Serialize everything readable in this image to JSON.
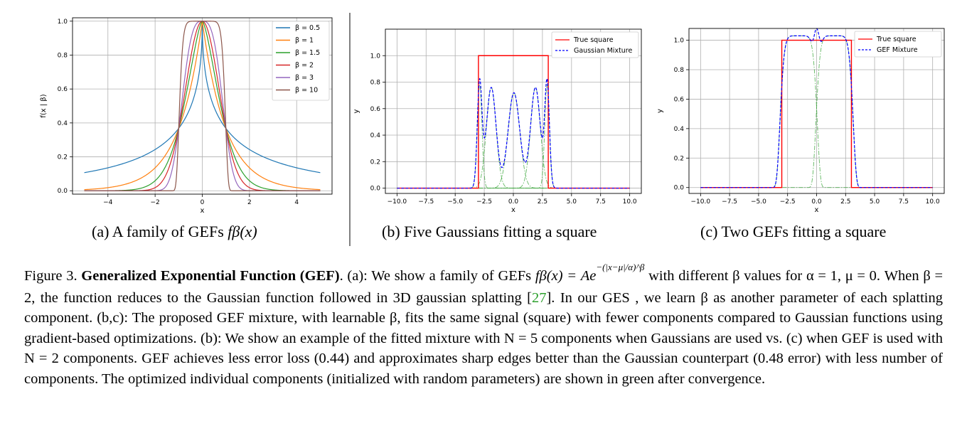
{
  "subfigures": {
    "a": {
      "prefix": "(a) A family of GEFs",
      "math": "fβ(x)"
    },
    "b": {
      "caption": "(b) Five Gaussians fitting a square"
    },
    "c": {
      "caption": "(c) Two GEFs fitting a square"
    }
  },
  "caption": {
    "label": "Figure 3.",
    "title": "Generalized Exponential Function (GEF)",
    "p1": ". (a): We show a family of GEFs",
    "m1": "fβ(x) = Ae",
    "sup": "−(|x−μ|/α)^β",
    "p2": "with different β values for",
    "p3": "α = 1, μ = 0. When β = 2, the function reduces to the Gaussian function followed in 3D gaussian splatting [",
    "ref": "27",
    "p4": "]. In our GES , we learn β as another parameter of each splatting component. (b,c): The proposed GEF mixture, with learnable β, fits the same signal (square) with fewer components compared to Gaussian functions using gradient-based optimizations. (b): We show an example of the fitted mixture with N = 5 components when Gaussians are used vs. (c) when GEF is used with N = 2 components. GEF achieves less error loss (0.44) and approximates sharp edges better than the Gaussian counterpart (0.48 error) with less number of components. The optimized individual components (initialized with random parameters) are shown in green after convergence."
  },
  "chart_data": [
    {
      "type": "line",
      "xlabel": "x",
      "ylabel": "f(x | β)",
      "xlim": [
        -5.5,
        5.5
      ],
      "ylim": [
        -0.02,
        1.02
      ],
      "xticks": [
        -4,
        -2,
        0,
        2,
        4
      ],
      "xtick_labels": [
        "−4",
        "−2",
        "0",
        "2",
        "4"
      ],
      "yticks": [
        0.0,
        0.2,
        0.4,
        0.6,
        0.8,
        1.0
      ],
      "ytick_labels": [
        "0.0",
        "0.2",
        "0.4",
        "0.6",
        "0.8",
        "1.0"
      ],
      "grid": true,
      "legend_position": "top-right",
      "series": [
        {
          "name": "β = 0.5",
          "beta": 0.5,
          "color": "#1f77b4"
        },
        {
          "name": "β = 1",
          "beta": 1,
          "color": "#ff7f0e"
        },
        {
          "name": "β = 1.5",
          "beta": 1.5,
          "color": "#2ca02c"
        },
        {
          "name": "β = 2",
          "beta": 2,
          "color": "#d62728"
        },
        {
          "name": "β = 3",
          "beta": 3,
          "color": "#9467bd"
        },
        {
          "name": "β = 10",
          "beta": 10,
          "color": "#8c564b"
        }
      ],
      "x_range": [
        -5,
        5
      ]
    },
    {
      "type": "line",
      "xlabel": "x",
      "ylabel": "y",
      "xlim": [
        -11,
        11
      ],
      "ylim": [
        -0.04,
        1.2
      ],
      "xticks": [
        -10,
        -7.5,
        -5,
        -2.5,
        0,
        2.5,
        5,
        7.5,
        10
      ],
      "xtick_labels": [
        "−10.0",
        "−7.5",
        "−5.0",
        "−2.5",
        "0.0",
        "2.5",
        "5.0",
        "7.5",
        "10.0"
      ],
      "yticks": [
        0.0,
        0.2,
        0.4,
        0.6,
        0.8,
        1.0
      ],
      "ytick_labels": [
        "0.0",
        "0.2",
        "0.4",
        "0.6",
        "0.8",
        "1.0"
      ],
      "grid": true,
      "legend_position": "top-right",
      "legend": [
        {
          "name": "True square",
          "color": "#ff0000",
          "dash": "solid"
        },
        {
          "name": "Gaussian Mixture",
          "color": "#0000ff",
          "dash": "dashed"
        }
      ],
      "square": {
        "from": -3,
        "to": 3,
        "height": 1.0
      },
      "components": [
        {
          "amp": 0.78,
          "center": -2.9,
          "width": 0.2
        },
        {
          "amp": 0.76,
          "center": -1.9,
          "width": 0.42
        },
        {
          "amp": 0.72,
          "center": 0.05,
          "width": 0.5
        },
        {
          "amp": 0.76,
          "center": 1.9,
          "width": 0.42
        },
        {
          "amp": 0.78,
          "center": 2.9,
          "width": 0.2
        }
      ]
    },
    {
      "type": "line",
      "xlabel": "x",
      "ylabel": "y",
      "xlim": [
        -11,
        11
      ],
      "ylim": [
        -0.04,
        1.08
      ],
      "xticks": [
        -10,
        -7.5,
        -5,
        -2.5,
        0,
        2.5,
        5,
        7.5,
        10
      ],
      "xtick_labels": [
        "−10.0",
        "−7.5",
        "−5.0",
        "−2.5",
        "0.0",
        "2.5",
        "5.0",
        "7.5",
        "10.0"
      ],
      "yticks": [
        0.0,
        0.2,
        0.4,
        0.6,
        0.8,
        1.0
      ],
      "ytick_labels": [
        "0.0",
        "0.2",
        "0.4",
        "0.6",
        "0.8",
        "1.0"
      ],
      "grid": true,
      "legend_position": "top-right",
      "legend": [
        {
          "name": "True square",
          "color": "#ff0000",
          "dash": "solid"
        },
        {
          "name": "GEF Mixture",
          "color": "#0000ff",
          "dash": "dashed"
        }
      ],
      "square": {
        "from": -3,
        "to": 3,
        "height": 1.0
      },
      "components": [
        {
          "amp": 1.03,
          "center": -1.55,
          "alpha": 1.65,
          "beta": 7
        },
        {
          "amp": 1.03,
          "center": 1.55,
          "alpha": 1.65,
          "beta": 7
        }
      ]
    }
  ]
}
